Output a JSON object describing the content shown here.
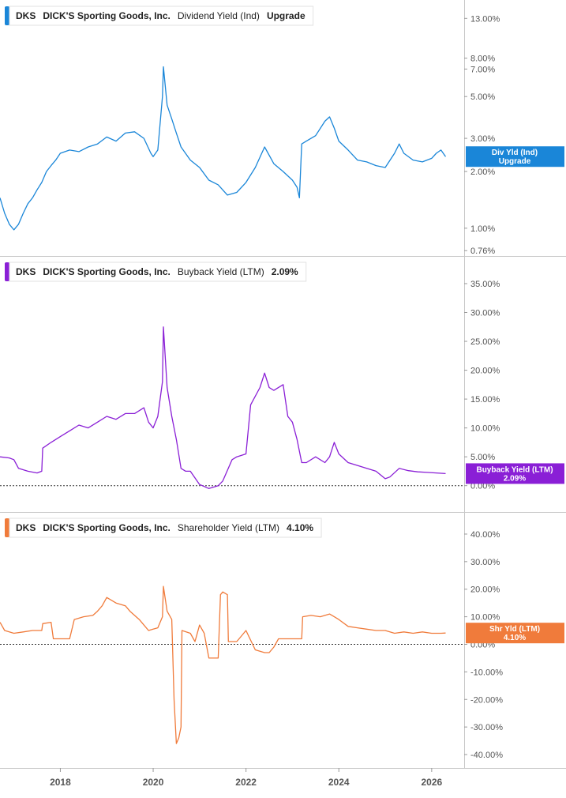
{
  "chart_data": [
    {
      "type": "line",
      "panel": "dividend",
      "legend": {
        "ticker": "DKS",
        "company": "DICK'S Sporting Goods, Inc.",
        "metric": "Dividend Yield (Ind)",
        "value": "Upgrade"
      },
      "tag": {
        "line1": "Div Yld (Ind)",
        "line2": "Upgrade"
      },
      "color": "#1a86d8",
      "y_scale": "log",
      "ylim": [
        0.74,
        14.5
      ],
      "y_ticks": [
        {
          "v": 13.0,
          "label": "13.00%"
        },
        {
          "v": 8.0,
          "label": "8.00%"
        },
        {
          "v": 7.0,
          "label": "7.00%"
        },
        {
          "v": 5.0,
          "label": "5.00%"
        },
        {
          "v": 3.0,
          "label": "3.00%"
        },
        {
          "v": 2.0,
          "label": "2.00%"
        },
        {
          "v": 1.0,
          "label": "1.00%"
        },
        {
          "v": 0.76,
          "label": "0.76%"
        }
      ],
      "zero_line": false,
      "series": [
        {
          "x": [
            2016.7,
            2016.8,
            2016.9,
            2017.0,
            2017.1,
            2017.2,
            2017.3,
            2017.4,
            2017.5,
            2017.6,
            2017.7,
            2017.8,
            2017.9,
            2018.0,
            2018.2,
            2018.4,
            2018.6,
            2018.8,
            2019.0,
            2019.2,
            2019.4,
            2019.6,
            2019.8,
            2019.95,
            2020.0,
            2020.1,
            2020.2,
            2020.22,
            2020.3,
            2020.4,
            2020.5,
            2020.6,
            2020.8,
            2021.0,
            2021.2,
            2021.4,
            2021.6,
            2021.8,
            2022.0,
            2022.2,
            2022.4,
            2022.6,
            2022.8,
            2023.0,
            2023.1,
            2023.15,
            2023.2,
            2023.3,
            2023.5,
            2023.7,
            2023.8,
            2023.9,
            2024.0,
            2024.2,
            2024.4,
            2024.6,
            2024.8,
            2025.0,
            2025.2,
            2025.3,
            2025.4,
            2025.6,
            2025.8,
            2026.0,
            2026.1,
            2026.2,
            2026.3
          ],
          "y": [
            1.45,
            1.2,
            1.05,
            0.98,
            1.05,
            1.2,
            1.35,
            1.45,
            1.6,
            1.75,
            2.0,
            2.15,
            2.3,
            2.5,
            2.6,
            2.55,
            2.7,
            2.8,
            3.05,
            2.9,
            3.2,
            3.25,
            3.0,
            2.5,
            2.4,
            2.6,
            5.0,
            7.2,
            4.5,
            3.8,
            3.2,
            2.7,
            2.3,
            2.1,
            1.8,
            1.7,
            1.5,
            1.55,
            1.75,
            2.1,
            2.7,
            2.2,
            2.0,
            1.8,
            1.65,
            1.45,
            2.8,
            2.9,
            3.1,
            3.7,
            3.9,
            3.4,
            2.9,
            2.6,
            2.3,
            2.25,
            2.15,
            2.1,
            2.5,
            2.8,
            2.5,
            2.3,
            2.25,
            2.35,
            2.5,
            2.6,
            2.4
          ]
        }
      ]
    },
    {
      "type": "line",
      "panel": "buyback",
      "legend": {
        "ticker": "DKS",
        "company": "DICK'S Sporting Goods, Inc.",
        "metric": "Buyback Yield (LTM)",
        "value": "2.09%"
      },
      "tag": {
        "line1": "Buyback Yield (LTM)",
        "line2": "2.09%"
      },
      "color": "#8a1fd6",
      "y_scale": "linear",
      "ylim": [
        -1.0,
        36.5
      ],
      "y_ticks": [
        {
          "v": 35,
          "label": "35.00%"
        },
        {
          "v": 30,
          "label": "30.00%"
        },
        {
          "v": 25,
          "label": "25.00%"
        },
        {
          "v": 20,
          "label": "20.00%"
        },
        {
          "v": 15,
          "label": "15.00%"
        },
        {
          "v": 10,
          "label": "10.00%"
        },
        {
          "v": 5,
          "label": "5.00%"
        },
        {
          "v": 0,
          "label": "0.00%"
        }
      ],
      "zero_line": true,
      "series": [
        {
          "x": [
            2016.7,
            2016.9,
            2017.0,
            2017.1,
            2017.3,
            2017.5,
            2017.6,
            2017.62,
            2017.8,
            2018.0,
            2018.2,
            2018.4,
            2018.6,
            2018.8,
            2019.0,
            2019.2,
            2019.4,
            2019.6,
            2019.8,
            2019.9,
            2020.0,
            2020.1,
            2020.2,
            2020.22,
            2020.3,
            2020.4,
            2020.5,
            2020.6,
            2020.7,
            2020.8,
            2021.0,
            2021.2,
            2021.4,
            2021.5,
            2021.7,
            2021.8,
            2022.0,
            2022.1,
            2022.3,
            2022.4,
            2022.5,
            2022.6,
            2022.8,
            2022.9,
            2023.0,
            2023.1,
            2023.2,
            2023.3,
            2023.5,
            2023.7,
            2023.8,
            2023.9,
            2024.0,
            2024.2,
            2024.4,
            2024.6,
            2024.8,
            2025.0,
            2025.1,
            2025.3,
            2025.5,
            2025.7,
            2025.9,
            2026.1,
            2026.3
          ],
          "y": [
            5.0,
            4.8,
            4.5,
            3.0,
            2.5,
            2.2,
            2.5,
            6.5,
            7.5,
            8.5,
            9.5,
            10.5,
            10.0,
            11.0,
            12.0,
            11.5,
            12.5,
            12.5,
            13.5,
            11.0,
            10.0,
            12.0,
            18.0,
            27.5,
            17.0,
            12.0,
            8.0,
            3.0,
            2.5,
            2.5,
            0.2,
            -0.5,
            0.0,
            0.8,
            4.5,
            5.0,
            5.5,
            14.0,
            17.0,
            19.5,
            17.0,
            16.5,
            17.5,
            12.0,
            11.0,
            8.0,
            4.0,
            4.0,
            5.0,
            4.0,
            5.0,
            7.5,
            5.5,
            4.0,
            3.5,
            3.0,
            2.5,
            1.2,
            1.5,
            3.0,
            2.6,
            2.4,
            2.3,
            2.2,
            2.09
          ]
        }
      ]
    },
    {
      "type": "line",
      "panel": "shareholder",
      "legend": {
        "ticker": "DKS",
        "company": "DICK'S Sporting Goods, Inc.",
        "metric": "Shareholder Yield (LTM)",
        "value": "4.10%"
      },
      "tag": {
        "line1": "Shr Yld (LTM)",
        "line2": "4.10%"
      },
      "color": "#f07b3b",
      "y_scale": "linear",
      "ylim": [
        -42,
        44
      ],
      "y_ticks": [
        {
          "v": 40,
          "label": "40.00%"
        },
        {
          "v": 30,
          "label": "30.00%"
        },
        {
          "v": 20,
          "label": "20.00%"
        },
        {
          "v": 10,
          "label": "10.00%"
        },
        {
          "v": 0,
          "label": "0.00%"
        },
        {
          "v": -10,
          "label": "-10.00%"
        },
        {
          "v": -20,
          "label": "-20.00%"
        },
        {
          "v": -30,
          "label": "-30.00%"
        },
        {
          "v": -40,
          "label": "-40.00%"
        }
      ],
      "zero_line": true,
      "series": [
        {
          "x": [
            2016.7,
            2016.8,
            2017.0,
            2017.2,
            2017.4,
            2017.6,
            2017.62,
            2017.8,
            2017.85,
            2018.0,
            2018.2,
            2018.3,
            2018.5,
            2018.7,
            2018.8,
            2018.9,
            2019.0,
            2019.2,
            2019.4,
            2019.5,
            2019.7,
            2019.8,
            2019.9,
            2020.0,
            2020.1,
            2020.2,
            2020.22,
            2020.3,
            2020.4,
            2020.45,
            2020.5,
            2020.55,
            2020.6,
            2020.62,
            2020.8,
            2020.9,
            2021.0,
            2021.1,
            2021.2,
            2021.4,
            2021.45,
            2021.5,
            2021.6,
            2021.62,
            2021.8,
            2021.9,
            2022.0,
            2022.2,
            2022.4,
            2022.5,
            2022.6,
            2022.7,
            2022.8,
            2023.0,
            2023.1,
            2023.2,
            2023.22,
            2023.4,
            2023.6,
            2023.8,
            2023.9,
            2024.0,
            2024.2,
            2024.4,
            2024.6,
            2024.8,
            2025.0,
            2025.2,
            2025.4,
            2025.6,
            2025.8,
            2026.0,
            2026.2,
            2026.3
          ],
          "y": [
            8.0,
            5.0,
            4.0,
            4.5,
            5.0,
            5.0,
            7.5,
            8.0,
            2.0,
            2.0,
            2.0,
            9.0,
            10.0,
            10.5,
            12.0,
            14.0,
            17.0,
            15.0,
            14.0,
            12.0,
            9.0,
            7.0,
            5.0,
            5.5,
            6.0,
            10.0,
            21.0,
            12.0,
            9.0,
            -20.0,
            -36.0,
            -34.0,
            -30.0,
            5.0,
            4.0,
            1.0,
            7.0,
            4.0,
            -5.0,
            -5.0,
            18.0,
            19.0,
            18.0,
            1.0,
            1.0,
            3.0,
            5.0,
            -2.0,
            -3.0,
            -3.0,
            -1.0,
            2.0,
            2.0,
            2.0,
            2.0,
            2.0,
            10.0,
            10.5,
            10.0,
            11.0,
            10.0,
            9.0,
            6.5,
            6.0,
            5.5,
            5.0,
            5.0,
            4.0,
            4.5,
            4.0,
            4.5,
            4.0,
            4.0,
            4.1
          ]
        }
      ]
    }
  ],
  "x_axis": {
    "ticks": [
      {
        "v": 2018,
        "label": "2018"
      },
      {
        "v": 2020,
        "label": "2020"
      },
      {
        "v": 2022,
        "label": "2022"
      },
      {
        "v": 2024,
        "label": "2024"
      },
      {
        "v": 2026,
        "label": "2026"
      }
    ]
  }
}
